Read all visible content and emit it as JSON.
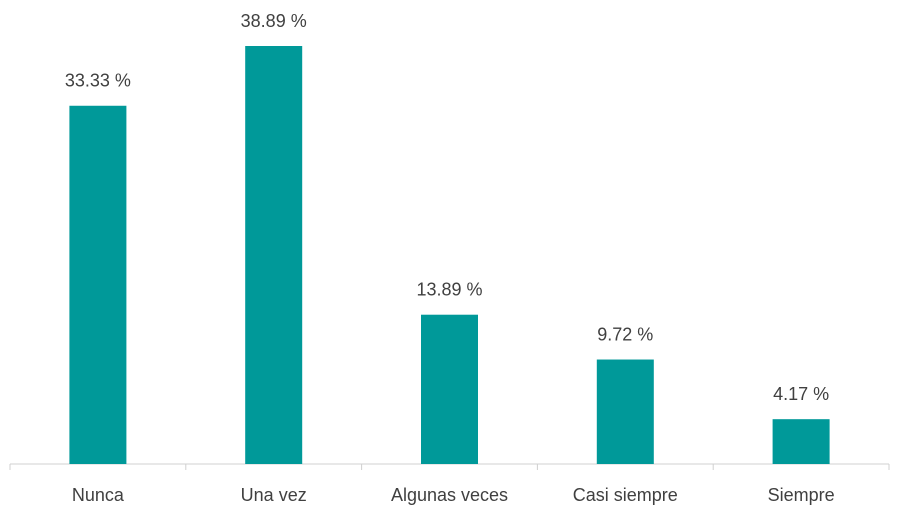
{
  "chart_data": {
    "type": "bar",
    "categories": [
      "Nunca",
      "Una vez",
      "Algunas veces",
      "Casi siempre",
      "Siempre"
    ],
    "values": [
      33.33,
      38.89,
      13.89,
      9.72,
      4.17
    ],
    "value_labels": [
      "33.33 %",
      "38.89 %",
      "13.89 %",
      "9.72 %",
      "4.17 %"
    ],
    "color": "#009999"
  }
}
